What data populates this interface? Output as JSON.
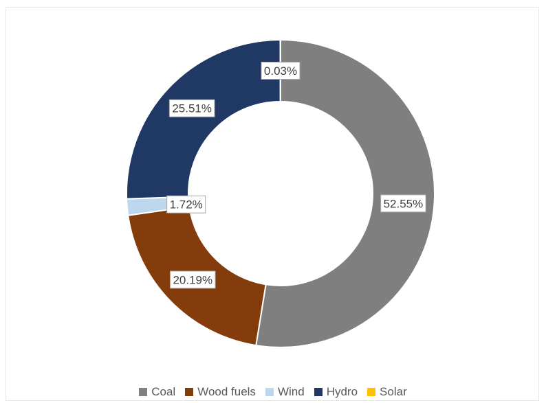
{
  "chart_data": {
    "type": "pie",
    "variant": "donut",
    "title": "",
    "categories": [
      "Coal",
      "Wood fuels",
      "Wind",
      "Hydro",
      "Solar"
    ],
    "values": [
      52.55,
      20.19,
      1.72,
      25.51,
      0.03
    ],
    "value_labels": [
      "52.55%",
      "20.19%",
      "1.72%",
      "25.51%",
      "0.03%"
    ],
    "colors": [
      "#7f7f7f",
      "#843c0c",
      "#bdd7ee",
      "#1f3864",
      "#ffc000"
    ],
    "legend_position": "bottom"
  }
}
